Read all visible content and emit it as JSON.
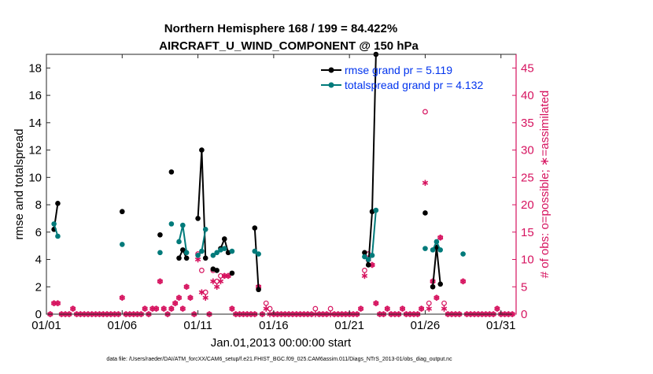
{
  "chart_data": {
    "type": "line",
    "title": "Northern Hemisphere 168 / 199 = 84.422%",
    "subtitle": "AIRCRAFT_U_WIND_COMPONENT @ 150 hPa",
    "xlabel": "Jan.01,2013 00:00:00 start",
    "ylabel": "rmse and totalspread",
    "y2label": "# of obs: o=possible; ∗=assimilated",
    "xlim": [
      1,
      32
    ],
    "ylim": [
      0,
      19
    ],
    "y2lim": [
      0,
      47.5
    ],
    "x_ticks": [
      1,
      6,
      11,
      16,
      21,
      26,
      31
    ],
    "x_tick_labels": [
      "01/01",
      "01/06",
      "01/11",
      "01/16",
      "01/21",
      "01/26",
      "01/31"
    ],
    "y_ticks": [
      0,
      2,
      4,
      6,
      8,
      10,
      12,
      14,
      16,
      18
    ],
    "y2_ticks": [
      0,
      5,
      10,
      15,
      20,
      25,
      30,
      35,
      40,
      45
    ],
    "colors": {
      "rmse": "#000000",
      "spread": "#007a7a",
      "obs": "#d6135f",
      "legend_text": "#0033ee"
    },
    "legend": [
      {
        "name": "rmse grand pr = 5.119",
        "series": "rmse"
      },
      {
        "name": "totalspread grand pr = 4.132",
        "series": "spread"
      }
    ],
    "series": [
      {
        "name": "rmse",
        "segments": [
          [
            [
              1.5,
              6.2
            ],
            [
              1.75,
              8.1
            ]
          ],
          [
            [
              6.0,
              7.5
            ]
          ],
          [
            [
              8.5,
              5.8
            ]
          ],
          [
            [
              9.25,
              10.4
            ]
          ],
          [
            [
              9.75,
              4.1
            ],
            [
              10.0,
              4.7
            ],
            [
              10.25,
              4.1
            ]
          ],
          [
            [
              11.0,
              7.0
            ],
            [
              11.25,
              12.0
            ],
            [
              11.5,
              4.1
            ]
          ],
          [
            [
              12.0,
              3.3
            ],
            [
              12.25,
              3.2
            ]
          ],
          [
            [
              12.5,
              4.8
            ],
            [
              12.75,
              5.5
            ],
            [
              13.0,
              4.5
            ]
          ],
          [
            [
              13.25,
              3.0
            ]
          ],
          [
            [
              14.75,
              6.3
            ],
            [
              15.0,
              1.8
            ]
          ],
          [
            [
              22.0,
              4.5
            ],
            [
              22.25,
              3.6
            ],
            [
              22.5,
              7.5
            ],
            [
              22.75,
              19.0
            ]
          ],
          [
            [
              26.0,
              7.4
            ]
          ],
          [
            [
              26.5,
              2.0
            ],
            [
              26.75,
              4.9
            ],
            [
              27.0,
              2.2
            ]
          ]
        ]
      },
      {
        "name": "spread",
        "segments": [
          [
            [
              1.5,
              6.6
            ],
            [
              1.75,
              5.7
            ]
          ],
          [
            [
              6.0,
              5.1
            ]
          ],
          [
            [
              8.5,
              4.5
            ]
          ],
          [
            [
              9.25,
              6.6
            ]
          ],
          [
            [
              9.75,
              5.3
            ],
            [
              10.0,
              6.5
            ],
            [
              10.25,
              4.5
            ]
          ],
          [
            [
              11.0,
              4.3
            ],
            [
              11.25,
              4.6
            ],
            [
              11.5,
              6.2
            ]
          ],
          [
            [
              12.0,
              4.3
            ],
            [
              12.25,
              4.5
            ]
          ],
          [
            [
              12.5,
              4.7
            ],
            [
              12.75,
              4.8
            ]
          ],
          [
            [
              13.25,
              4.6
            ]
          ],
          [
            [
              14.75,
              4.6
            ],
            [
              15.0,
              4.4
            ]
          ],
          [
            [
              22.0,
              4.2
            ],
            [
              22.25,
              4.0
            ],
            [
              22.5,
              4.3
            ],
            [
              22.75,
              7.6
            ]
          ],
          [
            [
              26.0,
              4.8
            ]
          ],
          [
            [
              26.5,
              4.7
            ],
            [
              26.75,
              5.3
            ],
            [
              27.0,
              4.7
            ]
          ],
          [
            [
              28.5,
              4.4
            ]
          ]
        ]
      }
    ],
    "obs_possible": [
      [
        1.25,
        0
      ],
      [
        1.5,
        2
      ],
      [
        1.75,
        2
      ],
      [
        2.0,
        0
      ],
      [
        2.25,
        0
      ],
      [
        2.5,
        0
      ],
      [
        2.75,
        1
      ],
      [
        3.0,
        0
      ],
      [
        3.25,
        0
      ],
      [
        3.5,
        0
      ],
      [
        3.75,
        0
      ],
      [
        4.0,
        0
      ],
      [
        4.25,
        0
      ],
      [
        4.5,
        0
      ],
      [
        4.75,
        0
      ],
      [
        5.0,
        0
      ],
      [
        5.25,
        0
      ],
      [
        5.5,
        0
      ],
      [
        5.75,
        0
      ],
      [
        6.0,
        3
      ],
      [
        6.25,
        0
      ],
      [
        6.5,
        0
      ],
      [
        6.75,
        0
      ],
      [
        7.0,
        0
      ],
      [
        7.25,
        0
      ],
      [
        7.5,
        1
      ],
      [
        7.75,
        0
      ],
      [
        8.0,
        1
      ],
      [
        8.25,
        1
      ],
      [
        8.5,
        6
      ],
      [
        8.75,
        1
      ],
      [
        9.0,
        0
      ],
      [
        9.25,
        1
      ],
      [
        9.5,
        2
      ],
      [
        9.75,
        3
      ],
      [
        10.0,
        1
      ],
      [
        10.25,
        5
      ],
      [
        10.5,
        3
      ],
      [
        10.75,
        0
      ],
      [
        11.0,
        11
      ],
      [
        11.25,
        8
      ],
      [
        11.5,
        4
      ],
      [
        11.75,
        0
      ],
      [
        12.0,
        8
      ],
      [
        12.25,
        6
      ],
      [
        12.5,
        7
      ],
      [
        12.75,
        7
      ],
      [
        13.0,
        7
      ],
      [
        13.25,
        1
      ],
      [
        13.5,
        0
      ],
      [
        13.75,
        0
      ],
      [
        14.0,
        0
      ],
      [
        14.25,
        0
      ],
      [
        14.5,
        0
      ],
      [
        14.75,
        0
      ],
      [
        15.0,
        5
      ],
      [
        15.25,
        0
      ],
      [
        15.5,
        2
      ],
      [
        15.75,
        1
      ],
      [
        16.0,
        0
      ],
      [
        16.25,
        0
      ],
      [
        16.5,
        0
      ],
      [
        16.75,
        0
      ],
      [
        17.0,
        0
      ],
      [
        17.25,
        0
      ],
      [
        17.5,
        0
      ],
      [
        17.75,
        0
      ],
      [
        18.0,
        0
      ],
      [
        18.25,
        0
      ],
      [
        18.5,
        0
      ],
      [
        18.75,
        1
      ],
      [
        19.0,
        0
      ],
      [
        19.25,
        0
      ],
      [
        19.5,
        0
      ],
      [
        19.75,
        1
      ],
      [
        20.0,
        0
      ],
      [
        20.25,
        0
      ],
      [
        20.5,
        0
      ],
      [
        20.75,
        0
      ],
      [
        21.0,
        0
      ],
      [
        21.25,
        0
      ],
      [
        21.5,
        0
      ],
      [
        21.75,
        1
      ],
      [
        22.0,
        8
      ],
      [
        22.25,
        11
      ],
      [
        22.5,
        9
      ],
      [
        22.75,
        2
      ],
      [
        23.0,
        0
      ],
      [
        23.25,
        0
      ],
      [
        23.5,
        1
      ],
      [
        23.75,
        0
      ],
      [
        24.0,
        0
      ],
      [
        24.25,
        0
      ],
      [
        24.5,
        1
      ],
      [
        24.75,
        0
      ],
      [
        25.0,
        0
      ],
      [
        25.25,
        0
      ],
      [
        25.5,
        0
      ],
      [
        25.75,
        1
      ],
      [
        26.0,
        37
      ],
      [
        26.25,
        2
      ],
      [
        26.5,
        6
      ],
      [
        26.75,
        3
      ],
      [
        27.0,
        14
      ],
      [
        27.25,
        2
      ],
      [
        27.5,
        0
      ],
      [
        27.75,
        0
      ],
      [
        28.0,
        0
      ],
      [
        28.25,
        0
      ],
      [
        28.5,
        6
      ],
      [
        28.75,
        0
      ],
      [
        29.0,
        0
      ],
      [
        29.25,
        0
      ],
      [
        29.5,
        0
      ],
      [
        29.75,
        0
      ],
      [
        30.0,
        0
      ],
      [
        30.25,
        0
      ],
      [
        30.5,
        0
      ],
      [
        30.75,
        1
      ],
      [
        31.0,
        0
      ],
      [
        31.25,
        0
      ],
      [
        31.5,
        0
      ],
      [
        31.75,
        0
      ]
    ],
    "obs_assimilated": [
      [
        1.25,
        0
      ],
      [
        1.5,
        2
      ],
      [
        1.75,
        2
      ],
      [
        2.0,
        0
      ],
      [
        2.25,
        0
      ],
      [
        2.5,
        0
      ],
      [
        2.75,
        1
      ],
      [
        3.0,
        0
      ],
      [
        3.25,
        0
      ],
      [
        3.5,
        0
      ],
      [
        3.75,
        0
      ],
      [
        4.0,
        0
      ],
      [
        4.25,
        0
      ],
      [
        4.5,
        0
      ],
      [
        4.75,
        0
      ],
      [
        5.0,
        0
      ],
      [
        5.25,
        0
      ],
      [
        5.5,
        0
      ],
      [
        5.75,
        0
      ],
      [
        6.0,
        3
      ],
      [
        6.25,
        0
      ],
      [
        6.5,
        0
      ],
      [
        6.75,
        0
      ],
      [
        7.0,
        0
      ],
      [
        7.25,
        0
      ],
      [
        7.5,
        1
      ],
      [
        7.75,
        0
      ],
      [
        8.0,
        1
      ],
      [
        8.25,
        1
      ],
      [
        8.5,
        6
      ],
      [
        8.75,
        1
      ],
      [
        9.0,
        0
      ],
      [
        9.25,
        1
      ],
      [
        9.5,
        2
      ],
      [
        9.75,
        3
      ],
      [
        10.0,
        1
      ],
      [
        10.25,
        5
      ],
      [
        10.5,
        3
      ],
      [
        10.75,
        0
      ],
      [
        11.0,
        10
      ],
      [
        11.25,
        4
      ],
      [
        11.5,
        3
      ],
      [
        11.75,
        0
      ],
      [
        12.0,
        6
      ],
      [
        12.25,
        5
      ],
      [
        12.5,
        6
      ],
      [
        12.75,
        7
      ],
      [
        13.0,
        7
      ],
      [
        13.25,
        1
      ],
      [
        13.5,
        0
      ],
      [
        13.75,
        0
      ],
      [
        14.0,
        0
      ],
      [
        14.25,
        0
      ],
      [
        14.5,
        0
      ],
      [
        14.75,
        0
      ],
      [
        15.0,
        5
      ],
      [
        15.25,
        0
      ],
      [
        15.5,
        1
      ],
      [
        15.75,
        0
      ],
      [
        16.0,
        0
      ],
      [
        16.25,
        0
      ],
      [
        16.5,
        0
      ],
      [
        16.75,
        0
      ],
      [
        17.0,
        0
      ],
      [
        17.25,
        0
      ],
      [
        17.5,
        0
      ],
      [
        17.75,
        0
      ],
      [
        18.0,
        0
      ],
      [
        18.25,
        0
      ],
      [
        18.5,
        0
      ],
      [
        18.75,
        0
      ],
      [
        19.0,
        0
      ],
      [
        19.25,
        0
      ],
      [
        19.5,
        0
      ],
      [
        19.75,
        0
      ],
      [
        20.0,
        0
      ],
      [
        20.25,
        0
      ],
      [
        20.5,
        0
      ],
      [
        20.75,
        0
      ],
      [
        21.0,
        0
      ],
      [
        21.25,
        0
      ],
      [
        21.5,
        0
      ],
      [
        21.75,
        1
      ],
      [
        22.0,
        7
      ],
      [
        22.25,
        10
      ],
      [
        22.5,
        9
      ],
      [
        22.75,
        2
      ],
      [
        23.0,
        0
      ],
      [
        23.25,
        0
      ],
      [
        23.5,
        1
      ],
      [
        23.75,
        0
      ],
      [
        24.0,
        0
      ],
      [
        24.25,
        0
      ],
      [
        24.5,
        1
      ],
      [
        24.75,
        0
      ],
      [
        25.0,
        0
      ],
      [
        25.25,
        0
      ],
      [
        25.5,
        0
      ],
      [
        25.75,
        1
      ],
      [
        26.0,
        24
      ],
      [
        26.25,
        1
      ],
      [
        26.5,
        6
      ],
      [
        26.75,
        3
      ],
      [
        27.0,
        14
      ],
      [
        27.25,
        1
      ],
      [
        27.5,
        0
      ],
      [
        27.75,
        0
      ],
      [
        28.0,
        0
      ],
      [
        28.25,
        0
      ],
      [
        28.5,
        6
      ],
      [
        28.75,
        0
      ],
      [
        29.0,
        0
      ],
      [
        29.25,
        0
      ],
      [
        29.5,
        0
      ],
      [
        29.75,
        0
      ],
      [
        30.0,
        0
      ],
      [
        30.25,
        0
      ],
      [
        30.5,
        0
      ],
      [
        30.75,
        1
      ],
      [
        31.0,
        0
      ],
      [
        31.25,
        0
      ],
      [
        31.5,
        0
      ],
      [
        31.75,
        0
      ]
    ]
  },
  "footer": {
    "data_file": "data file: /Users/raeder/DAI/ATM_forcXX/CAM6_setup/f.e21.FHIST_BGC.f09_025.CAM6assim.011/Diags_NTrS_2013-01/obs_diag_output.nc"
  }
}
